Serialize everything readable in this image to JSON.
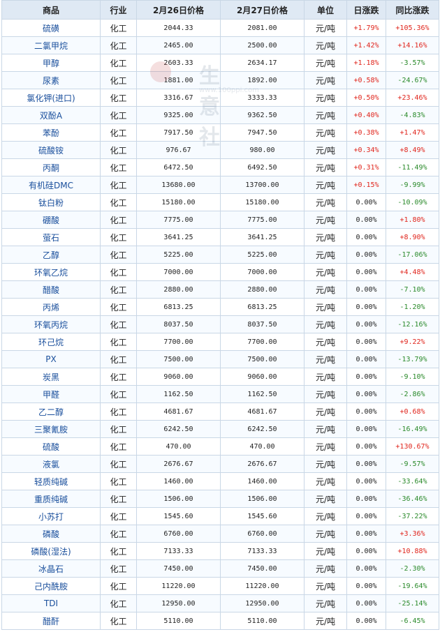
{
  "headers": [
    "商品",
    "行业",
    "2月26日价格",
    "2月27日价格",
    "单位",
    "日涨跌",
    "同比涨跌"
  ],
  "rows": [
    {
      "name": "硫磺",
      "industry": "化工",
      "p1": "2044.33",
      "p2": "2081.00",
      "unit": "元/吨",
      "day": "+1.79%",
      "yoy": "+105.36%"
    },
    {
      "name": "二氯甲烷",
      "industry": "化工",
      "p1": "2465.00",
      "p2": "2500.00",
      "unit": "元/吨",
      "day": "+1.42%",
      "yoy": "+14.16%"
    },
    {
      "name": "甲醇",
      "industry": "化工",
      "p1": "2603.33",
      "p2": "2634.17",
      "unit": "元/吨",
      "day": "+1.18%",
      "yoy": "-3.57%"
    },
    {
      "name": "尿素",
      "industry": "化工",
      "p1": "1881.00",
      "p2": "1892.00",
      "unit": "元/吨",
      "day": "+0.58%",
      "yoy": "-24.67%"
    },
    {
      "name": "氯化钾(进口)",
      "industry": "化工",
      "p1": "3316.67",
      "p2": "3333.33",
      "unit": "元/吨",
      "day": "+0.50%",
      "yoy": "+23.46%"
    },
    {
      "name": "双酚A",
      "industry": "化工",
      "p1": "9325.00",
      "p2": "9362.50",
      "unit": "元/吨",
      "day": "+0.40%",
      "yoy": "-4.83%"
    },
    {
      "name": "苯酚",
      "industry": "化工",
      "p1": "7917.50",
      "p2": "7947.50",
      "unit": "元/吨",
      "day": "+0.38%",
      "yoy": "+1.47%"
    },
    {
      "name": "硫酸铵",
      "industry": "化工",
      "p1": "976.67",
      "p2": "980.00",
      "unit": "元/吨",
      "day": "+0.34%",
      "yoy": "+8.49%"
    },
    {
      "name": "丙酮",
      "industry": "化工",
      "p1": "6472.50",
      "p2": "6492.50",
      "unit": "元/吨",
      "day": "+0.31%",
      "yoy": "-11.49%"
    },
    {
      "name": "有机硅DMC",
      "industry": "化工",
      "p1": "13680.00",
      "p2": "13700.00",
      "unit": "元/吨",
      "day": "+0.15%",
      "yoy": "-9.99%"
    },
    {
      "name": "钛白粉",
      "industry": "化工",
      "p1": "15180.00",
      "p2": "15180.00",
      "unit": "元/吨",
      "day": "0.00%",
      "yoy": "-10.09%"
    },
    {
      "name": "硼酸",
      "industry": "化工",
      "p1": "7775.00",
      "p2": "7775.00",
      "unit": "元/吨",
      "day": "0.00%",
      "yoy": "+1.80%"
    },
    {
      "name": "萤石",
      "industry": "化工",
      "p1": "3641.25",
      "p2": "3641.25",
      "unit": "元/吨",
      "day": "0.00%",
      "yoy": "+8.90%"
    },
    {
      "name": "乙醇",
      "industry": "化工",
      "p1": "5225.00",
      "p2": "5225.00",
      "unit": "元/吨",
      "day": "0.00%",
      "yoy": "-17.06%"
    },
    {
      "name": "环氧乙烷",
      "industry": "化工",
      "p1": "7000.00",
      "p2": "7000.00",
      "unit": "元/吨",
      "day": "0.00%",
      "yoy": "+4.48%"
    },
    {
      "name": "醋酸",
      "industry": "化工",
      "p1": "2880.00",
      "p2": "2880.00",
      "unit": "元/吨",
      "day": "0.00%",
      "yoy": "-7.10%"
    },
    {
      "name": "丙烯",
      "industry": "化工",
      "p1": "6813.25",
      "p2": "6813.25",
      "unit": "元/吨",
      "day": "0.00%",
      "yoy": "-1.20%"
    },
    {
      "name": "环氧丙烷",
      "industry": "化工",
      "p1": "8037.50",
      "p2": "8037.50",
      "unit": "元/吨",
      "day": "0.00%",
      "yoy": "-12.16%"
    },
    {
      "name": "环己烷",
      "industry": "化工",
      "p1": "7700.00",
      "p2": "7700.00",
      "unit": "元/吨",
      "day": "0.00%",
      "yoy": "+9.22%"
    },
    {
      "name": "PX",
      "industry": "化工",
      "p1": "7500.00",
      "p2": "7500.00",
      "unit": "元/吨",
      "day": "0.00%",
      "yoy": "-13.79%"
    },
    {
      "name": "炭黑",
      "industry": "化工",
      "p1": "9060.00",
      "p2": "9060.00",
      "unit": "元/吨",
      "day": "0.00%",
      "yoy": "-9.10%"
    },
    {
      "name": "甲醛",
      "industry": "化工",
      "p1": "1162.50",
      "p2": "1162.50",
      "unit": "元/吨",
      "day": "0.00%",
      "yoy": "-2.86%"
    },
    {
      "name": "乙二醇",
      "industry": "化工",
      "p1": "4681.67",
      "p2": "4681.67",
      "unit": "元/吨",
      "day": "0.00%",
      "yoy": "+0.68%"
    },
    {
      "name": "三聚氰胺",
      "industry": "化工",
      "p1": "6242.50",
      "p2": "6242.50",
      "unit": "元/吨",
      "day": "0.00%",
      "yoy": "-16.49%"
    },
    {
      "name": "硫酸",
      "industry": "化工",
      "p1": "470.00",
      "p2": "470.00",
      "unit": "元/吨",
      "day": "0.00%",
      "yoy": "+130.67%"
    },
    {
      "name": "液氯",
      "industry": "化工",
      "p1": "2676.67",
      "p2": "2676.67",
      "unit": "元/吨",
      "day": "0.00%",
      "yoy": "-9.57%"
    },
    {
      "name": "轻质纯碱",
      "industry": "化工",
      "p1": "1460.00",
      "p2": "1460.00",
      "unit": "元/吨",
      "day": "0.00%",
      "yoy": "-33.64%"
    },
    {
      "name": "重质纯碱",
      "industry": "化工",
      "p1": "1506.00",
      "p2": "1506.00",
      "unit": "元/吨",
      "day": "0.00%",
      "yoy": "-36.46%"
    },
    {
      "name": "小苏打",
      "industry": "化工",
      "p1": "1545.60",
      "p2": "1545.60",
      "unit": "元/吨",
      "day": "0.00%",
      "yoy": "-37.22%"
    },
    {
      "name": "磷酸",
      "industry": "化工",
      "p1": "6760.00",
      "p2": "6760.00",
      "unit": "元/吨",
      "day": "0.00%",
      "yoy": "+3.36%"
    },
    {
      "name": "磷酸(湿法)",
      "industry": "化工",
      "p1": "7133.33",
      "p2": "7133.33",
      "unit": "元/吨",
      "day": "0.00%",
      "yoy": "+10.88%"
    },
    {
      "name": "冰晶石",
      "industry": "化工",
      "p1": "7450.00",
      "p2": "7450.00",
      "unit": "元/吨",
      "day": "0.00%",
      "yoy": "-2.30%"
    },
    {
      "name": "己内酰胺",
      "industry": "化工",
      "p1": "11220.00",
      "p2": "11220.00",
      "unit": "元/吨",
      "day": "0.00%",
      "yoy": "-19.64%"
    },
    {
      "name": "TDI",
      "industry": "化工",
      "p1": "12950.00",
      "p2": "12950.00",
      "unit": "元/吨",
      "day": "0.00%",
      "yoy": "-25.14%"
    },
    {
      "name": "醋酐",
      "industry": "化工",
      "p1": "5110.00",
      "p2": "5110.00",
      "unit": "元/吨",
      "day": "0.00%",
      "yoy": "-6.45%"
    }
  ],
  "watermark": {
    "text": "生意社",
    "url": "www.100ppi.com"
  },
  "colors": {
    "up": "#e0251c",
    "down": "#2a8a2a",
    "header_bg": "#dfe9f4",
    "border": "#c9d7e6",
    "name": "#1a4f9c"
  }
}
